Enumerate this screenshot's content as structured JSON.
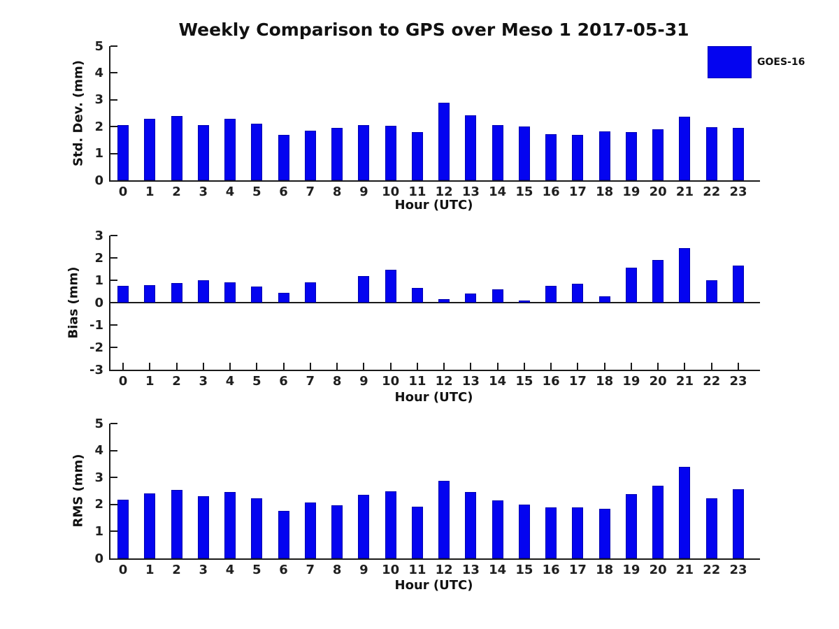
{
  "figure": {
    "title": "Weekly Comparison to GPS over Meso 1 2017-05-31",
    "background": "#ffffff",
    "text_color": "#1a1a1a"
  },
  "legend": {
    "label": "GOES-16",
    "swatch_color": "#0404f0",
    "position": "top-right",
    "frame": false
  },
  "chart_data": [
    {
      "type": "bar",
      "title": "Weekly Comparison to GPS over Meso 1 2017-05-31",
      "series_name": "GOES-16",
      "bar_color": "#0404f0",
      "xlabel": "Hour (UTC)",
      "ylabel": "Std. Dev. (mm)",
      "ylim": [
        0,
        5
      ],
      "yticks": [
        5,
        4,
        3,
        2,
        1,
        0
      ],
      "grid": false,
      "categories": [
        "0",
        "1",
        "2",
        "3",
        "4",
        "5",
        "6",
        "7",
        "8",
        "9",
        "10",
        "11",
        "12",
        "13",
        "14",
        "15",
        "16",
        "17",
        "18",
        "19",
        "20",
        "21",
        "22",
        "23"
      ],
      "values": [
        2.05,
        2.3,
        2.4,
        2.07,
        2.3,
        2.1,
        1.68,
        1.86,
        1.95,
        2.05,
        2.02,
        1.8,
        2.88,
        2.43,
        2.06,
        2.01,
        1.73,
        1.7,
        1.82,
        1.8,
        1.91,
        2.38,
        1.98,
        1.96
      ]
    },
    {
      "type": "bar",
      "series_name": "GOES-16",
      "bar_color": "#0404f0",
      "xlabel": "Hour (UTC)",
      "ylabel": "Bias (mm)",
      "ylim": [
        -3,
        3
      ],
      "yticks": [
        3,
        2,
        1,
        0,
        -1,
        -2,
        -3
      ],
      "grid": false,
      "categories": [
        "0",
        "1",
        "2",
        "3",
        "4",
        "5",
        "6",
        "7",
        "8",
        "9",
        "10",
        "11",
        "12",
        "13",
        "14",
        "15",
        "16",
        "17",
        "18",
        "19",
        "20",
        "21",
        "22",
        "23"
      ],
      "values": [
        0.75,
        0.78,
        0.88,
        1.0,
        0.92,
        0.72,
        0.45,
        0.9,
        0.0,
        1.2,
        1.47,
        0.65,
        0.15,
        0.42,
        0.58,
        0.08,
        0.75,
        0.83,
        0.28,
        1.57,
        1.9,
        2.43,
        1.0,
        1.65
      ]
    },
    {
      "type": "bar",
      "series_name": "GOES-16",
      "bar_color": "#0404f0",
      "xlabel": "Hour (UTC)",
      "ylabel": "RMS (mm)",
      "ylim": [
        0,
        5
      ],
      "yticks": [
        5,
        4,
        3,
        2,
        1,
        0
      ],
      "grid": false,
      "categories": [
        "0",
        "1",
        "2",
        "3",
        "4",
        "5",
        "6",
        "7",
        "8",
        "9",
        "10",
        "11",
        "12",
        "13",
        "14",
        "15",
        "16",
        "17",
        "18",
        "19",
        "20",
        "21",
        "22",
        "23"
      ],
      "values": [
        2.17,
        2.42,
        2.55,
        2.31,
        2.47,
        2.22,
        1.75,
        2.07,
        1.96,
        2.37,
        2.5,
        1.91,
        2.88,
        2.46,
        2.15,
        2.0,
        1.88,
        1.9,
        1.85,
        2.38,
        2.7,
        3.39,
        2.23,
        2.56
      ]
    }
  ]
}
